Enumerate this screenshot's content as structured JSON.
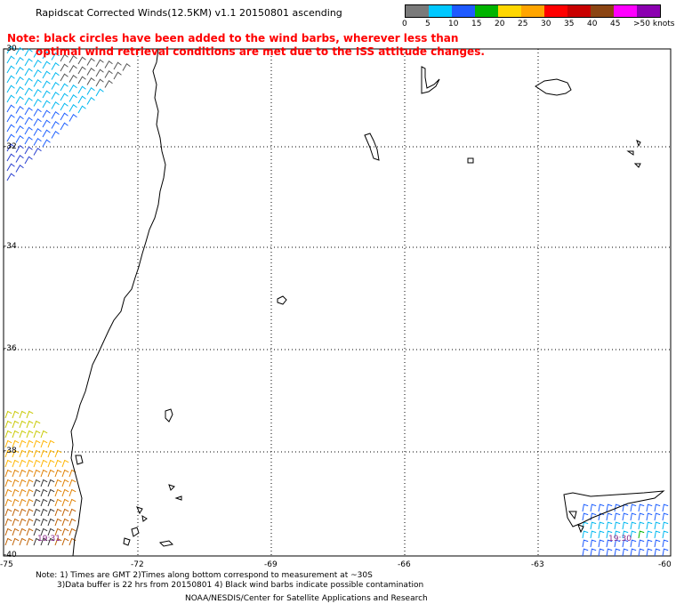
{
  "title": "Rapidscat Corrected Winds(12.5KM) v1.1 20150801 ascending",
  "note_line1": "Note: black circles have been added to the wind barbs, wherever less than",
  "note_line2": "optimal wind retrieval conditions are met due to the ISS attitude changes.",
  "legend": {
    "colors": [
      "#7a7a7a",
      "#00c8ff",
      "#1e5aff",
      "#00b400",
      "#ffd700",
      "#ffa500",
      "#ff0000",
      "#c80000",
      "#8b4513",
      "#ff00ff",
      "#8b00b0"
    ],
    "labels": [
      "0",
      "5",
      "10",
      "15",
      "20",
      "25",
      "30",
      "35",
      "40",
      "45",
      ">50 knots"
    ]
  },
  "lat_labels": [
    "-30",
    "-32",
    "-34",
    "-36",
    "-38",
    "-40"
  ],
  "lon_labels": [
    "-75",
    "-72",
    "-69",
    "-66",
    "-63",
    "-60"
  ],
  "time_labels": [
    "19:31",
    "19:30"
  ],
  "footer": {
    "line1": "Note: 1) Times are GMT 2)Times along bottom correspond to measurement at ~30S",
    "line2": "3)Data buffer is 22 hrs from 20150801 4) Black wind barbs indicate possible contamination",
    "line3": "NOAA/NESDIS/Center for Satellite Applications and Research"
  }
}
